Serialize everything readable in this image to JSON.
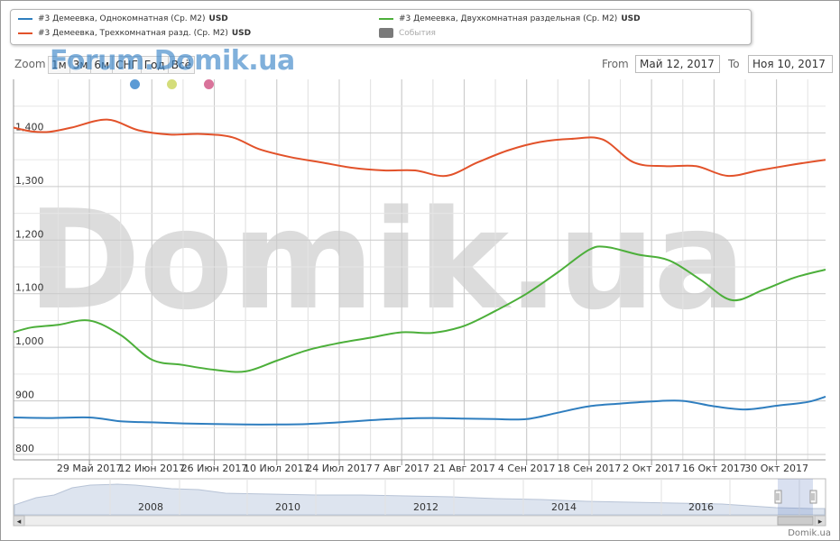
{
  "legend": {
    "items": [
      {
        "label": "#3 Демеевка, Однокомнатная (Ср. М2)",
        "unit": "USD",
        "color": "#2f7ebf"
      },
      {
        "label": "#3 Демеевка, Двухкомнатная раздельная (Ср. М2)",
        "unit": "USD",
        "color": "#4caf3a"
      },
      {
        "label": "#3 Демеевка, Трехкомнатная разд. (Ср. М2)",
        "unit": "USD",
        "color": "#e2522a"
      },
      {
        "label": "События",
        "unit": "",
        "color": "#7a7a7a"
      }
    ]
  },
  "range_selector": {
    "zoom_label": "Zoom",
    "buttons": [
      "1м",
      "3м",
      "6м",
      "СНГ",
      "Год",
      "Всё"
    ],
    "from_label": "From",
    "from_value": "Май 12, 2017",
    "to_label": "To",
    "to_value": "Ноя 10, 2017"
  },
  "watermark_small": "Forum.Domik.ua",
  "watermark_big": "Domik.ua",
  "event_dots": [
    "#5b9bd5",
    "#d4dd7a",
    "#d9739a"
  ],
  "credit": "Domik.ua",
  "chart_data": {
    "type": "line",
    "ylim": [
      790,
      1500
    ],
    "yticks": [
      800,
      900,
      1000,
      1100,
      1200,
      1300,
      1400
    ],
    "ytick_labels": [
      "800",
      "900",
      "1,000",
      "1,100",
      "1,200",
      "1,300",
      "1,400"
    ],
    "xlim": [
      "2017-05-12",
      "2017-11-10"
    ],
    "xticks": [
      {
        "date": "2017-05-29",
        "label": "29 Май 2017"
      },
      {
        "date": "2017-06-12",
        "label": "12 Июн 2017"
      },
      {
        "date": "2017-06-26",
        "label": "26 Июн 2017"
      },
      {
        "date": "2017-07-10",
        "label": "10 Июл 2017"
      },
      {
        "date": "2017-07-24",
        "label": "24 Июл 2017"
      },
      {
        "date": "2017-08-07",
        "label": "7 Авг 2017"
      },
      {
        "date": "2017-08-21",
        "label": "21 Авг 2017"
      },
      {
        "date": "2017-09-04",
        "label": "4 Сен 2017"
      },
      {
        "date": "2017-09-18",
        "label": "18 Сен 2017"
      },
      {
        "date": "2017-10-02",
        "label": "2 Окт 2017"
      },
      {
        "date": "2017-10-16",
        "label": "16 Окт 2017"
      },
      {
        "date": "2017-10-30",
        "label": "30 Окт 2017"
      }
    ],
    "series": [
      {
        "name": "#3 Демеевка, Трехкомнатная разд. (Ср. М2)",
        "color": "#e2522a",
        "x": [
          "2017-05-12",
          "2017-05-16",
          "2017-05-20",
          "2017-05-25",
          "2017-06-02",
          "2017-06-09",
          "2017-06-16",
          "2017-06-23",
          "2017-06-30",
          "2017-07-06",
          "2017-07-13",
          "2017-07-20",
          "2017-07-27",
          "2017-08-03",
          "2017-08-10",
          "2017-08-17",
          "2017-08-24",
          "2017-08-31",
          "2017-09-07",
          "2017-09-14",
          "2017-09-21",
          "2017-09-28",
          "2017-10-05",
          "2017-10-12",
          "2017-10-19",
          "2017-10-26",
          "2017-11-02",
          "2017-11-10"
        ],
        "values": [
          1410,
          1403,
          1402,
          1410,
          1425,
          1405,
          1397,
          1398,
          1392,
          1370,
          1355,
          1345,
          1335,
          1330,
          1330,
          1320,
          1345,
          1368,
          1383,
          1389,
          1388,
          1345,
          1338,
          1338,
          1320,
          1330,
          1340,
          1350
        ]
      },
      {
        "name": "#3 Демеевка, Двухкомнатная раздельная (Ср. М2)",
        "color": "#4caf3a",
        "x": [
          "2017-05-12",
          "2017-05-16",
          "2017-05-22",
          "2017-05-29",
          "2017-06-05",
          "2017-06-12",
          "2017-06-19",
          "2017-06-26",
          "2017-07-03",
          "2017-07-10",
          "2017-07-17",
          "2017-07-24",
          "2017-07-31",
          "2017-08-07",
          "2017-08-14",
          "2017-08-21",
          "2017-08-28",
          "2017-09-04",
          "2017-09-11",
          "2017-09-18",
          "2017-09-22",
          "2017-09-29",
          "2017-10-06",
          "2017-10-13",
          "2017-10-20",
          "2017-10-27",
          "2017-11-03",
          "2017-11-10"
        ],
        "values": [
          1028,
          1037,
          1042,
          1050,
          1023,
          977,
          967,
          958,
          955,
          975,
          995,
          1008,
          1018,
          1028,
          1027,
          1040,
          1068,
          1100,
          1140,
          1182,
          1187,
          1173,
          1162,
          1126,
          1088,
          1107,
          1130,
          1145
        ]
      },
      {
        "name": "#3 Демеевка, Однокомнатная (Ср. М2)",
        "color": "#2f7ebf",
        "x": [
          "2017-05-12",
          "2017-05-20",
          "2017-05-29",
          "2017-06-05",
          "2017-06-12",
          "2017-06-19",
          "2017-06-26",
          "2017-07-03",
          "2017-07-10",
          "2017-07-17",
          "2017-07-24",
          "2017-07-31",
          "2017-08-07",
          "2017-08-14",
          "2017-08-21",
          "2017-08-28",
          "2017-09-04",
          "2017-09-11",
          "2017-09-18",
          "2017-09-25",
          "2017-10-02",
          "2017-10-09",
          "2017-10-16",
          "2017-10-23",
          "2017-10-30",
          "2017-11-06",
          "2017-11-10"
        ],
        "values": [
          869,
          868,
          869,
          862,
          860,
          858,
          857,
          856,
          856,
          857,
          860,
          864,
          867,
          868,
          867,
          866,
          866,
          878,
          890,
          895,
          899,
          900,
          890,
          884,
          891,
          898,
          908
        ]
      }
    ]
  },
  "navigator": {
    "year_labels": [
      "2008",
      "2010",
      "2012",
      "2014",
      "2016"
    ],
    "scroll_left_label": "◂",
    "scroll_right_label": "▸"
  }
}
